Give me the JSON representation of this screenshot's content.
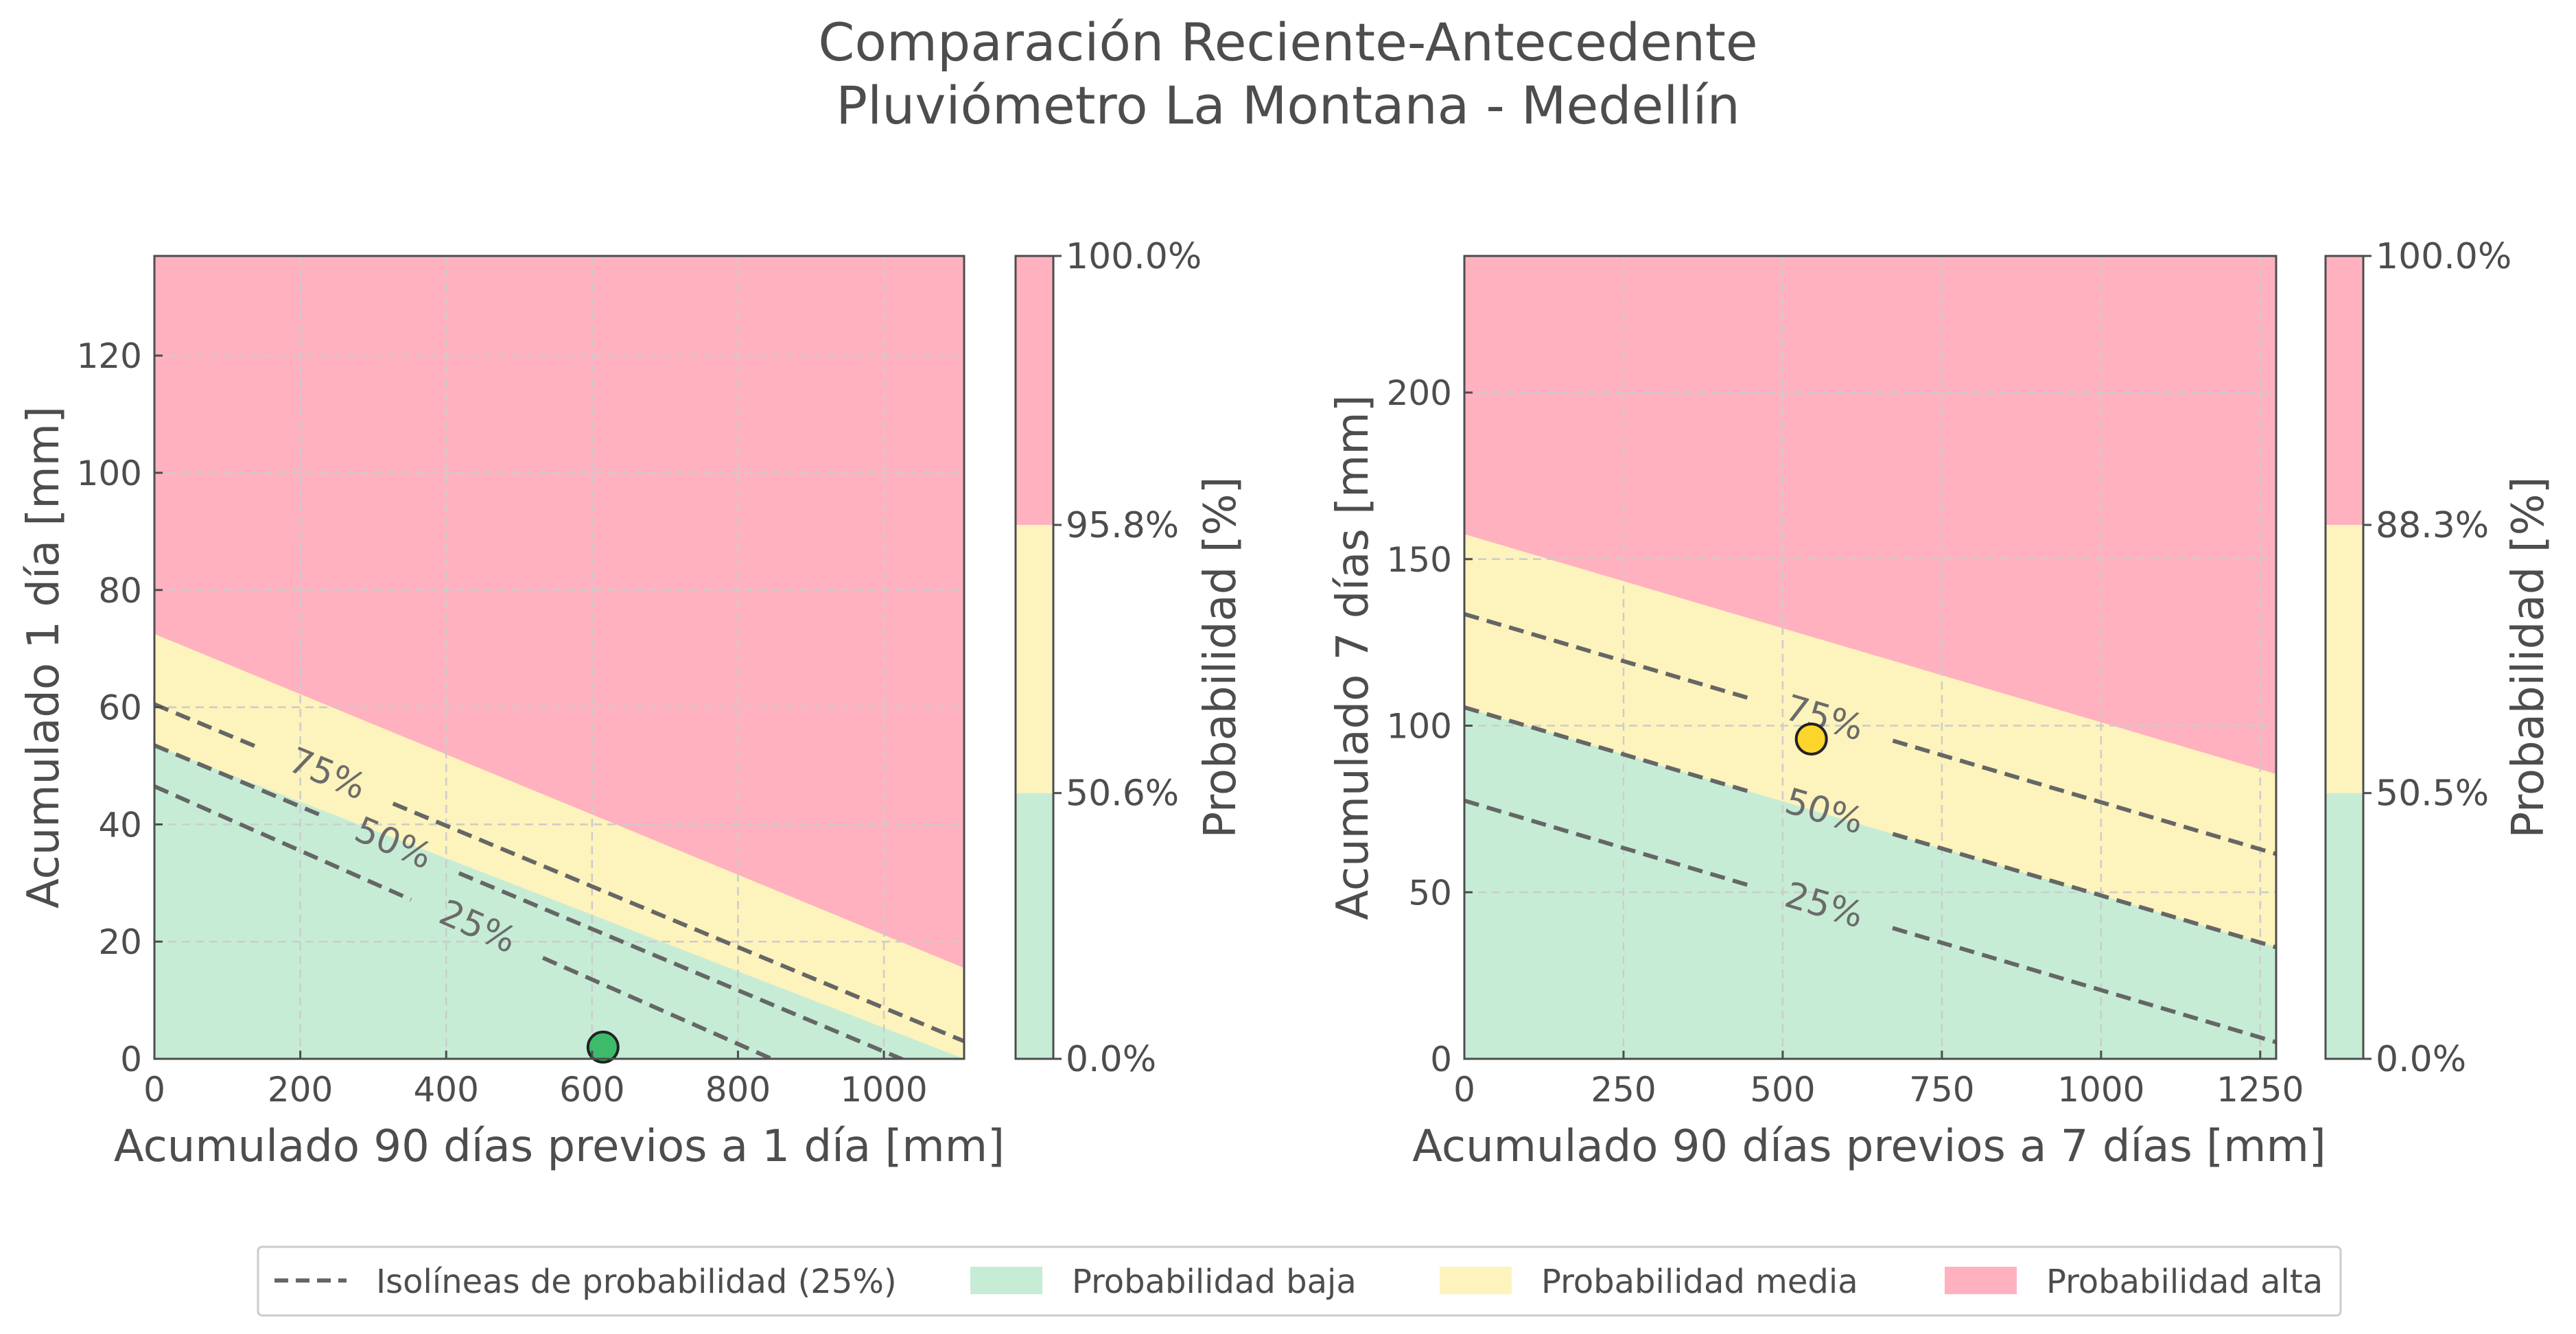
{
  "title": [
    "Comparación Reciente-Antecedente",
    "Pluviómetro La Montana - Medellín"
  ],
  "colors": {
    "low": "#c6ecd6",
    "medium": "#fdf3bc",
    "high": "#ffb1c0",
    "isoline": "#666666",
    "grid": "#cccccc",
    "frame": "#4d4d4d"
  },
  "legend": {
    "isolines": "Isolíneas de probabilidad (25%)",
    "low": "Probabilidad baja",
    "medium": "Probabilidad media",
    "high": "Probabilidad alta"
  },
  "chart_data": [
    {
      "type": "area",
      "xlabel": "Acumulado 90 días previos a 1 día [mm]",
      "ylabel": "Acumulado 1 día [mm]",
      "xlim": [
        0,
        1110
      ],
      "ylim": [
        0,
        137
      ],
      "xticks": [
        0,
        200,
        400,
        600,
        800,
        1000
      ],
      "yticks": [
        0,
        20,
        40,
        60,
        80,
        100,
        120
      ],
      "grid": true,
      "regions": {
        "medium_lower": [
          [
            0,
            53.5
          ],
          [
            1110,
            0
          ]
        ],
        "high_lower": [
          [
            0,
            72.5
          ],
          [
            1110,
            15.5
          ]
        ]
      },
      "isolines": [
        {
          "label": "25%",
          "line": [
            [
              0,
              46.5
            ],
            [
              1110,
              -14.5
            ]
          ],
          "label_at": [
            445,
            23
          ]
        },
        {
          "label": "50%",
          "line": [
            [
              0,
              53.5
            ],
            [
              1110,
              -4.5
            ]
          ],
          "label_at": [
            325,
            36
          ]
        },
        {
          "label": "75%",
          "line": [
            [
              0,
              60.5
            ],
            [
              1110,
              3.0
            ]
          ],
          "label_at": [
            235,
            48
          ]
        }
      ],
      "point": {
        "x": 615,
        "y": 2,
        "color": "#3dbb6a"
      },
      "colorbar": {
        "label": "Probabilidad [%]",
        "ticks": [
          "0.0%",
          "50.6%",
          "95.8%",
          "100.0%"
        ]
      }
    },
    {
      "type": "area",
      "xlabel": "Acumulado 90 días previos a 7 días [mm]",
      "ylabel": "Acumulado 7 días [mm]",
      "xlim": [
        0,
        1275
      ],
      "ylim": [
        0,
        241
      ],
      "xticks": [
        0,
        250,
        500,
        750,
        1000,
        1250
      ],
      "yticks": [
        0,
        50,
        100,
        150,
        200
      ],
      "grid": true,
      "regions": {
        "medium_lower": [
          [
            0,
            105.5
          ],
          [
            1275,
            33.5
          ]
        ],
        "high_lower": [
          [
            0,
            157.5
          ],
          [
            1275,
            85.5
          ]
        ]
      },
      "isolines": [
        {
          "label": "25%",
          "line": [
            [
              0,
              77.5
            ],
            [
              1275,
              5.0
            ]
          ],
          "label_at": [
            565,
            46
          ]
        },
        {
          "label": "50%",
          "line": [
            [
              0,
              105.5
            ],
            [
              1275,
              33.5
            ]
          ],
          "label_at": [
            565,
            74
          ]
        },
        {
          "label": "75%",
          "line": [
            [
              0,
              133.5
            ],
            [
              1275,
              61.5
            ]
          ],
          "label_at": [
            565,
            102
          ]
        }
      ],
      "point": {
        "x": 545,
        "y": 96,
        "color": "#fbd52b"
      },
      "colorbar": {
        "label": "Probabilidad [%]",
        "ticks": [
          "0.0%",
          "50.5%",
          "88.3%",
          "100.0%"
        ]
      }
    }
  ]
}
